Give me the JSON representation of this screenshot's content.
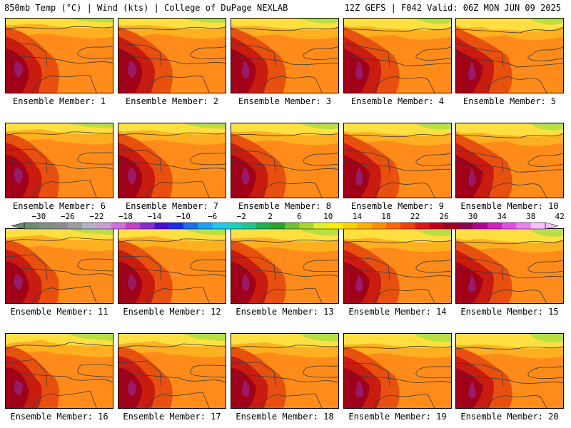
{
  "header": {
    "left": "850mb Temp (°C) | Wind (kts) | College of DuPage NEXLAB",
    "right": "12Z GEFS | F042 Valid: 06Z MON JUN 09 2025"
  },
  "panels": [
    {
      "label": "Ensemble Member: 1"
    },
    {
      "label": "Ensemble Member: 2"
    },
    {
      "label": "Ensemble Member: 3"
    },
    {
      "label": "Ensemble Member: 4"
    },
    {
      "label": "Ensemble Member: 5"
    },
    {
      "label": "Ensemble Member: 6"
    },
    {
      "label": "Ensemble Member: 7"
    },
    {
      "label": "Ensemble Member: 8"
    },
    {
      "label": "Ensemble Member: 9"
    },
    {
      "label": "Ensemble Member: 10"
    },
    {
      "label": "Ensemble Member: 11"
    },
    {
      "label": "Ensemble Member: 12"
    },
    {
      "label": "Ensemble Member: 13"
    },
    {
      "label": "Ensemble Member: 14"
    },
    {
      "label": "Ensemble Member: 15"
    },
    {
      "label": "Ensemble Member: 16"
    },
    {
      "label": "Ensemble Member: 17"
    },
    {
      "label": "Ensemble Member: 18"
    },
    {
      "label": "Ensemble Member: 19"
    },
    {
      "label": "Ensemble Member: 20"
    }
  ],
  "colorbar": {
    "tick_labels": [
      "-30",
      "-26",
      "-22",
      "-18",
      "-14",
      "-10",
      "-6",
      "-2",
      "2",
      "6",
      "10",
      "14",
      "18",
      "22",
      "26",
      "30",
      "34",
      "38",
      "42"
    ],
    "colors": [
      "#6f8a6f",
      "#7f8f7f",
      "#8d8d8d",
      "#9e9e9e",
      "#b4b4c6",
      "#c8a0d8",
      "#d070d8",
      "#c040c8",
      "#8a2bd0",
      "#4b0fd0",
      "#1f2fe0",
      "#1e6ee8",
      "#1ea0f0",
      "#20c8f0",
      "#20d0c0",
      "#20c890",
      "#20b050",
      "#30a030",
      "#70c030",
      "#a8d830",
      "#e0f030",
      "#f8f000",
      "#ffd000",
      "#ffb000",
      "#ff9000",
      "#ff6a00",
      "#f04010",
      "#e01818",
      "#c00018",
      "#a00020",
      "#900050",
      "#b00090",
      "#d020c0",
      "#e050e0",
      "#f080f0",
      "#f8c0f8"
    ]
  },
  "palette": {
    "cool": "#ffe040",
    "mild": "#ffb020",
    "warm": "#ff8c1a",
    "hot": "#e85010",
    "hotter": "#c81c10",
    "hottest": "#a00018",
    "extreme": "#9a1a6a",
    "north_edge": "#b8e040",
    "contour": "#3a3a3a"
  }
}
